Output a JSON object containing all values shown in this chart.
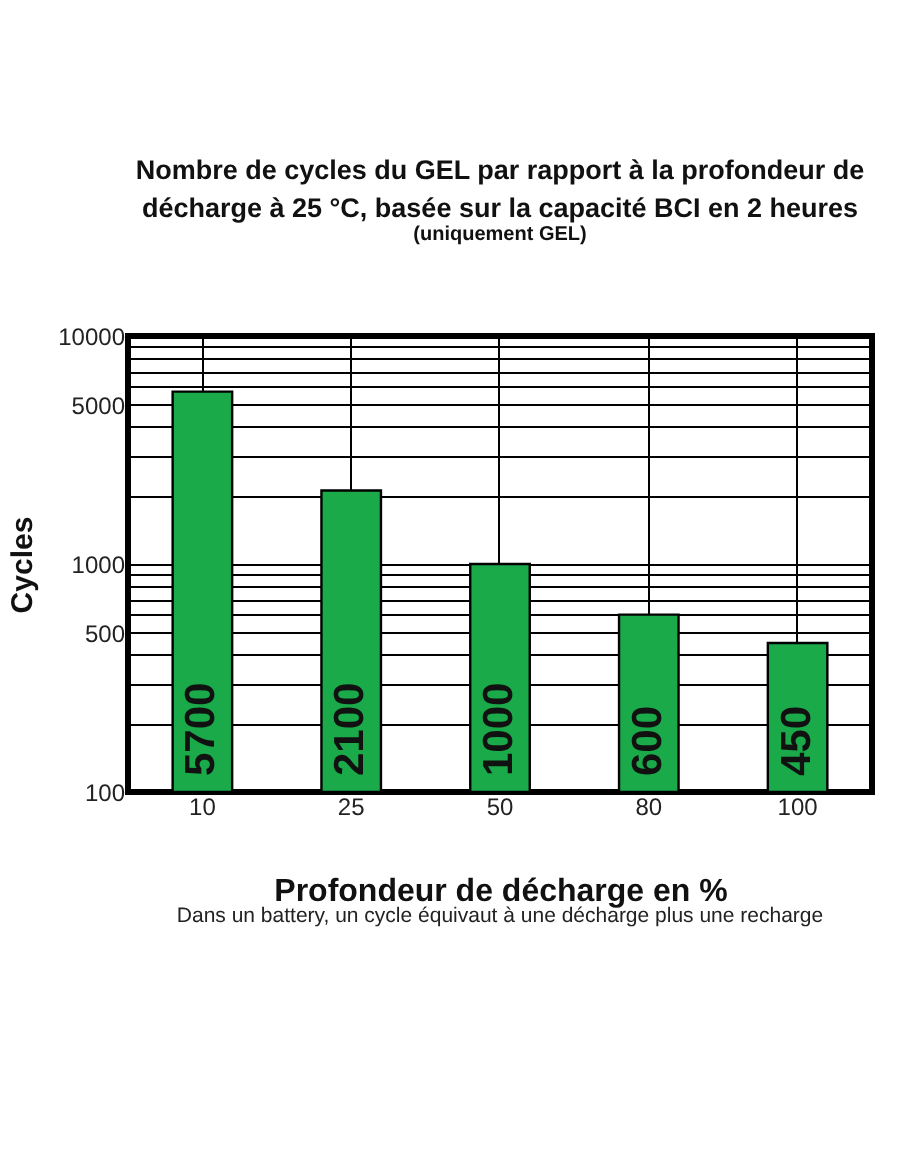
{
  "chart_data": {
    "type": "bar",
    "title": "Nombre de cycles du GEL par rapport à la profondeur de\ndécharge à 25 °C, basée sur la capacité BCI en 2 heures",
    "subtitle": "(uniquement GEL)",
    "xlabel": "Profondeur de décharge en %",
    "ylabel": "Cycles",
    "annotations": [
      "Dans un battery, un cycle équivaut à une décharge plus une recharge"
    ],
    "categories": [
      "10",
      "25",
      "50",
      "80",
      "100"
    ],
    "values": [
      5700,
      2100,
      1000,
      600,
      450
    ],
    "color": "#1aaa4a",
    "data_labels": true,
    "log": true,
    "ylim": [
      100,
      10000
    ],
    "yticks": [
      100,
      {
        "value": 200,
        "label": null
      },
      {
        "value": 300,
        "label": null
      },
      {
        "value": 400,
        "label": null
      },
      500,
      {
        "value": 600,
        "label": null
      },
      {
        "value": 700,
        "label": null
      },
      {
        "value": 800,
        "label": null
      },
      {
        "value": 900,
        "label": null
      },
      1000,
      {
        "value": 2000,
        "label": null
      },
      {
        "value": 3000,
        "label": null
      },
      {
        "value": 4000,
        "label": null
      },
      5000,
      {
        "value": 6000,
        "label": null
      },
      {
        "value": 7000,
        "label": null
      },
      {
        "value": 8000,
        "label": null
      },
      {
        "value": 9000,
        "label": null
      },
      10000
    ],
    "grid": true
  }
}
